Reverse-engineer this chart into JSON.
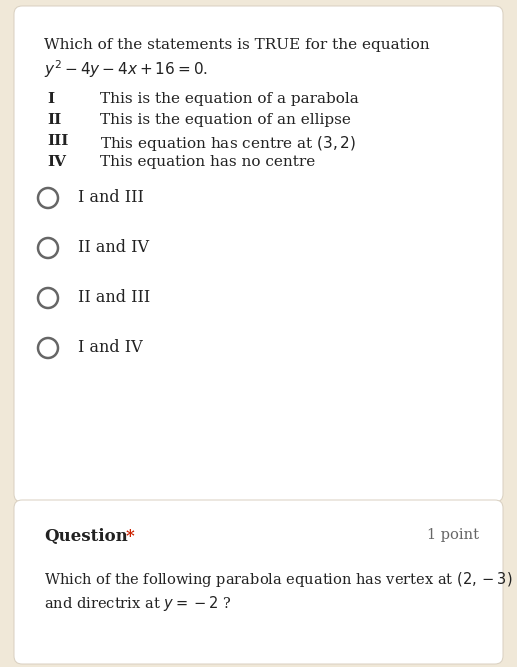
{
  "bg_color": "#f0e8d8",
  "card1_color": "#ffffff",
  "card2_color": "#ffffff",
  "card_edge_color": "#d8cfc0",
  "card1_title_line1": "Which of the statements is TRUE for the equation",
  "card1_title_line2_plain": "y",
  "card1_title_line2_eq": "$y^2 - 4y - 4x + 16 = 0$.",
  "statements": [
    [
      "I",
      "This is the equation of a parabola"
    ],
    [
      "II",
      "This is the equation of an ellipse"
    ],
    [
      "III",
      "This equation has centre at $(3,2)$"
    ],
    [
      "IV",
      "This equation has no centre"
    ]
  ],
  "options": [
    "I and III",
    "II and IV",
    "II and III",
    "I and IV"
  ],
  "card2_label": "Question",
  "card2_star": "*",
  "card2_points": "1 point",
  "card2_body_line1": "Which of the following parabola equation has vertex at $(2,-3)$",
  "card2_body_line2": "and directrix at $y = -2$ ?"
}
